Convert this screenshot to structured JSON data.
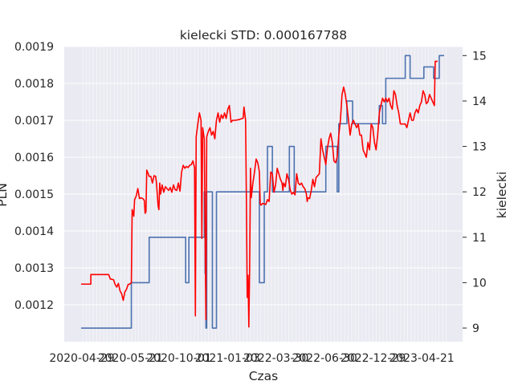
{
  "chart_data": {
    "type": "line",
    "title": "kielecki STD: 0.000167788",
    "xlabel": "Czas",
    "ylabel_left": "PLN",
    "ylabel_right": "kielecki",
    "x_tick_labels": [
      "2020-04-29",
      "2020-05-21",
      "2020-10-01",
      "2021-01-03",
      "2022-03-30",
      "2022-06-30",
      "2022-12-29",
      "2023-04-21"
    ],
    "y_left_ticks": [
      "0.0012",
      "0.0013",
      "0.0014",
      "0.0015",
      "0.0016",
      "0.0017",
      "0.0018",
      "0.0019"
    ],
    "y_left_lim": [
      0.0011,
      0.0019
    ],
    "y_right_ticks": [
      "9",
      "10",
      "11",
      "12",
      "13",
      "14",
      "15"
    ],
    "y_right_lim": [
      8.7,
      15.2
    ],
    "grid": true,
    "colors": {
      "pln": "#ff0000",
      "kielecki": "#4c72b0",
      "background": "#eaeaf2",
      "grid": "#ffffff"
    },
    "series": [
      {
        "axis": "left",
        "color": "#ff0000",
        "points": [
          [
            0,
            0.001256
          ],
          [
            12,
            0.001256
          ],
          [
            12,
            0.001282
          ],
          [
            34,
            0.001282
          ],
          [
            36,
            0.00127
          ],
          [
            40,
            0.001268
          ],
          [
            42,
            0.001255
          ],
          [
            44,
            0.001248
          ],
          [
            46,
            0.001258
          ],
          [
            48,
            0.001238
          ],
          [
            50,
            0.00123
          ],
          [
            52,
            0.001212
          ],
          [
            54,
            0.001235
          ],
          [
            56,
            0.001242
          ],
          [
            58,
            0.001255
          ],
          [
            60,
            0.001256
          ],
          [
            62,
            0.00126
          ],
          [
            63,
            0.001458
          ],
          [
            64,
            0.00145
          ],
          [
            65,
            0.00144
          ],
          [
            66,
            0.001485
          ],
          [
            68,
            0.001495
          ],
          [
            70,
            0.001515
          ],
          [
            72,
            0.001488
          ],
          [
            74,
            0.00149
          ],
          [
            76,
            0.001488
          ],
          [
            78,
            0.001483
          ],
          [
            79,
            0.001448
          ],
          [
            80,
            0.001452
          ],
          [
            81,
            0.001565
          ],
          [
            82,
            0.00156
          ],
          [
            84,
            0.001548
          ],
          [
            86,
            0.001548
          ],
          [
            88,
            0.00153
          ],
          [
            90,
            0.00155
          ],
          [
            92,
            0.001548
          ],
          [
            93,
            0.00153
          ],
          [
            95,
            0.001468
          ],
          [
            96,
            0.001458
          ],
          [
            97,
            0.00153
          ],
          [
            98,
            0.0015
          ],
          [
            100,
            0.001525
          ],
          [
            102,
            0.001505
          ],
          [
            104,
            0.00152
          ],
          [
            106,
            0.001515
          ],
          [
            108,
            0.00151
          ],
          [
            110,
            0.001518
          ],
          [
            112,
            0.001505
          ],
          [
            114,
            0.001525
          ],
          [
            116,
            0.001512
          ],
          [
            118,
            0.00151
          ],
          [
            120,
            0.00153
          ],
          [
            122,
            0.001508
          ],
          [
            124,
            0.00156
          ],
          [
            126,
            0.001578
          ],
          [
            128,
            0.00157
          ],
          [
            130,
            0.001575
          ],
          [
            132,
            0.001572
          ],
          [
            134,
            0.001578
          ],
          [
            136,
            0.00158
          ],
          [
            138,
            0.00159
          ],
          [
            140,
            0.001572
          ],
          [
            141,
            0.00117
          ],
          [
            142,
            0.001655
          ],
          [
            144,
            0.00169
          ],
          [
            146,
            0.00172
          ],
          [
            148,
            0.0017
          ],
          [
            149,
            0.00138
          ],
          [
            150,
            0.00168
          ],
          [
            152,
            0.00165
          ],
          [
            154,
            0.00116
          ],
          [
            155,
            0.001655
          ],
          [
            157,
            0.00167
          ],
          [
            159,
            0.00168
          ],
          [
            161,
            0.00166
          ],
          [
            163,
            0.00167
          ],
          [
            165,
            0.00165
          ],
          [
            167,
            0.0017
          ],
          [
            169,
            0.00172
          ],
          [
            171,
            0.001695
          ],
          [
            173,
            0.001715
          ],
          [
            175,
            0.001705
          ],
          [
            177,
            0.00172
          ],
          [
            179,
            0.001705
          ],
          [
            181,
            0.00173
          ],
          [
            183,
            0.00174
          ],
          [
            185,
            0.001695
          ],
          [
            187,
            0.0017
          ],
          [
            190,
            0.0017
          ],
          [
            195,
            0.001702
          ],
          [
            200,
            0.001706
          ],
          [
            201,
            0.001736
          ],
          [
            203,
            0.0017
          ],
          [
            204,
            0.00148
          ],
          [
            205,
            0.00122
          ],
          [
            206,
            0.00128
          ],
          [
            207,
            0.00114
          ],
          [
            208,
            0.0013
          ],
          [
            209,
            0.00157
          ],
          [
            210,
            0.00149
          ],
          [
            212,
            0.00153
          ],
          [
            214,
            0.00156
          ],
          [
            216,
            0.001595
          ],
          [
            218,
            0.001585
          ],
          [
            220,
            0.00156
          ],
          [
            221,
            0.001475
          ],
          [
            222,
            0.00147
          ],
          [
            224,
            0.001475
          ],
          [
            228,
            0.001472
          ],
          [
            230,
            0.001485
          ],
          [
            232,
            0.00148
          ],
          [
            234,
            0.00156
          ],
          [
            236,
            0.001555
          ],
          [
            238,
            0.001505
          ],
          [
            240,
            0.001525
          ],
          [
            242,
            0.00157
          ],
          [
            244,
            0.001555
          ],
          [
            246,
            0.00154
          ],
          [
            248,
            0.00153
          ],
          [
            249,
            0.00151
          ],
          [
            250,
            0.00153
          ],
          [
            252,
            0.00152
          ],
          [
            254,
            0.001555
          ],
          [
            256,
            0.00154
          ],
          [
            258,
            0.001512
          ],
          [
            260,
            0.0015
          ],
          [
            262,
            0.001505
          ],
          [
            264,
            0.001498
          ],
          [
            266,
            0.001555
          ],
          [
            268,
            0.00153
          ],
          [
            270,
            0.001525
          ],
          [
            272,
            0.00153
          ],
          [
            274,
            0.00152
          ],
          [
            276,
            0.001515
          ],
          [
            278,
            0.0015
          ],
          [
            279,
            0.00148
          ],
          [
            280,
            0.00149
          ],
          [
            282,
            0.001488
          ],
          [
            284,
            0.00151
          ],
          [
            286,
            0.00154
          ],
          [
            288,
            0.00152
          ],
          [
            290,
            0.001545
          ],
          [
            292,
            0.00155
          ],
          [
            294,
            0.001555
          ],
          [
            296,
            0.00165
          ],
          [
            298,
            0.00162
          ],
          [
            300,
            0.0016
          ],
          [
            302,
            0.00158
          ],
          [
            304,
            0.001625
          ],
          [
            306,
            0.00165
          ],
          [
            308,
            0.001665
          ],
          [
            310,
            0.00164
          ],
          [
            312,
            0.00159
          ],
          [
            314,
            0.001585
          ],
          [
            316,
            0.0016
          ],
          [
            318,
            0.00166
          ],
          [
            320,
            0.0017
          ],
          [
            322,
            0.00177
          ],
          [
            324,
            0.00179
          ],
          [
            326,
            0.00177
          ],
          [
            328,
            0.00174
          ],
          [
            330,
            0.0017
          ],
          [
            332,
            0.00166
          ],
          [
            334,
            0.00169
          ],
          [
            336,
            0.0017
          ],
          [
            338,
            0.00169
          ],
          [
            340,
            0.00168
          ],
          [
            342,
            0.00169
          ],
          [
            344,
            0.00166
          ],
          [
            346,
            0.00166
          ],
          [
            348,
            0.00162
          ],
          [
            350,
            0.00161
          ],
          [
            352,
            0.0016
          ],
          [
            354,
            0.00164
          ],
          [
            356,
            0.00162
          ],
          [
            358,
            0.00169
          ],
          [
            360,
            0.00168
          ],
          [
            362,
            0.00164
          ],
          [
            364,
            0.00162
          ],
          [
            366,
            0.00166
          ],
          [
            368,
            0.00172
          ],
          [
            370,
            0.00174
          ],
          [
            372,
            0.00176
          ],
          [
            374,
            0.00175
          ],
          [
            376,
            0.00176
          ],
          [
            378,
            0.00175
          ],
          [
            380,
            0.00176
          ],
          [
            382,
            0.00174
          ],
          [
            384,
            0.00173
          ],
          [
            386,
            0.00178
          ],
          [
            388,
            0.00177
          ],
          [
            390,
            0.00174
          ],
          [
            392,
            0.00172
          ],
          [
            394,
            0.00169
          ],
          [
            396,
            0.00169
          ],
          [
            398,
            0.00169
          ],
          [
            400,
            0.00169
          ],
          [
            402,
            0.00168
          ],
          [
            404,
            0.0017
          ],
          [
            406,
            0.00172
          ],
          [
            408,
            0.0017
          ],
          [
            410,
            0.0017
          ],
          [
            412,
            0.00172
          ],
          [
            414,
            0.00173
          ],
          [
            416,
            0.00172
          ],
          [
            418,
            0.00174
          ],
          [
            420,
            0.00175
          ],
          [
            422,
            0.00178
          ],
          [
            424,
            0.00177
          ],
          [
            426,
            0.001745
          ],
          [
            428,
            0.00175
          ],
          [
            430,
            0.00177
          ],
          [
            432,
            0.00176
          ],
          [
            434,
            0.00175
          ],
          [
            436,
            0.00174
          ],
          [
            437,
            0.00186
          ],
          [
            440,
            0.00186
          ]
        ]
      },
      {
        "axis": "right",
        "color": "#4c72b0",
        "points": [
          [
            0,
            9.0
          ],
          [
            62,
            9.0
          ],
          [
            62,
            10.0
          ],
          [
            84,
            10.0
          ],
          [
            84,
            11.0
          ],
          [
            129,
            11.0
          ],
          [
            129,
            10.0
          ],
          [
            133,
            10.0
          ],
          [
            133,
            11.0
          ],
          [
            152,
            11.0
          ],
          [
            152,
            12.0
          ],
          [
            153,
            12.0
          ],
          [
            153,
            10.2
          ],
          [
            154,
            10.2
          ],
          [
            154,
            9.0
          ],
          [
            155,
            9.0
          ],
          [
            155,
            12.0
          ],
          [
            162,
            12.0
          ],
          [
            162,
            9.0
          ],
          [
            167,
            9.0
          ],
          [
            167,
            12.0
          ],
          [
            220,
            12.0
          ],
          [
            220,
            10.0
          ],
          [
            226,
            10.0
          ],
          [
            226,
            12.0
          ],
          [
            230,
            12.0
          ],
          [
            230,
            13.0
          ],
          [
            236,
            13.0
          ],
          [
            236,
            12.0
          ],
          [
            257,
            12.0
          ],
          [
            257,
            13.0
          ],
          [
            263,
            13.0
          ],
          [
            263,
            12.0
          ],
          [
            302,
            12.0
          ],
          [
            302,
            13.0
          ],
          [
            316,
            13.0
          ],
          [
            316,
            12.0
          ],
          [
            318,
            12.0
          ],
          [
            318,
            13.5
          ],
          [
            328,
            13.5
          ],
          [
            328,
            14.0
          ],
          [
            335,
            14.0
          ],
          [
            335,
            13.5
          ],
          [
            368,
            13.5
          ],
          [
            368,
            13.9
          ],
          [
            372,
            13.9
          ],
          [
            372,
            13.5
          ],
          [
            376,
            13.5
          ],
          [
            376,
            14.5
          ],
          [
            400,
            14.5
          ],
          [
            400,
            15.0
          ],
          [
            406,
            15.0
          ],
          [
            406,
            14.5
          ],
          [
            423,
            14.5
          ],
          [
            423,
            14.75
          ],
          [
            435,
            14.75
          ],
          [
            435,
            14.5
          ],
          [
            442,
            14.5
          ],
          [
            442,
            15.0
          ],
          [
            448,
            15.0
          ]
        ]
      }
    ]
  }
}
